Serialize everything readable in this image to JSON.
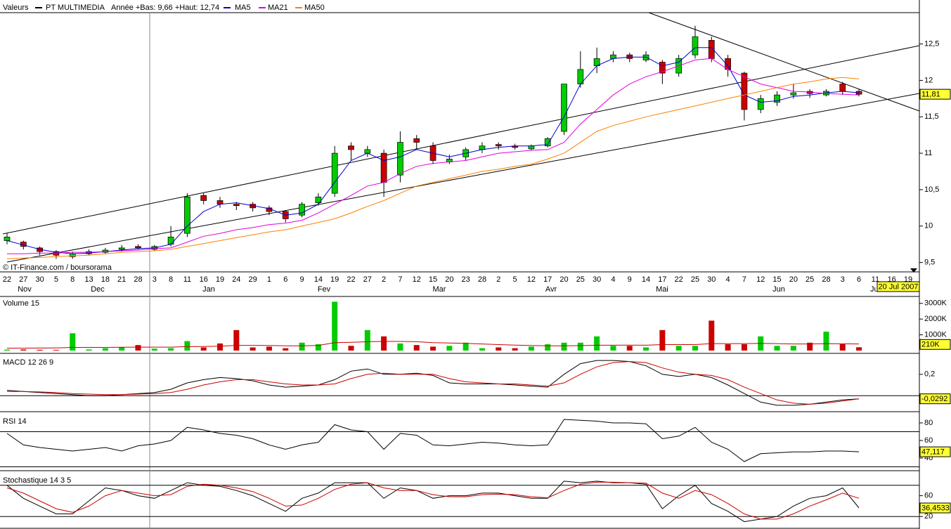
{
  "header": {
    "label": "Valeurs",
    "title": "PT MULTIMEDIA",
    "subtitle": "Année +Bas: 9,66 +Haut: 12,74",
    "credit": "© IT-Finance.com / boursorama",
    "date": "20 Jul 2007"
  },
  "x_labels": [
    "22",
    "27",
    "30",
    "5",
    "8",
    "13",
    "18",
    "21",
    "28",
    "3",
    "8",
    "11",
    "16",
    "19",
    "24",
    "29",
    "1",
    "6",
    "9",
    "14",
    "19",
    "22",
    "27",
    "2",
    "7",
    "12",
    "15",
    "20",
    "23",
    "28",
    "2",
    "5",
    "12",
    "17",
    "20",
    "25",
    "30",
    "4",
    "9",
    "14",
    "17",
    "22",
    "25",
    "30",
    "4",
    "7",
    "12",
    "15",
    "20",
    "25",
    "28",
    "3",
    "6",
    "11",
    "16",
    "19"
  ],
  "months": [
    "Nov",
    "Dec",
    "Jan",
    "Fev",
    "Mar",
    "Avr",
    "Mai",
    "Jun",
    "Jul"
  ],
  "chart_data": [
    {
      "type": "candlestick",
      "up_color": "#00cc00",
      "down_color": "#cc0000",
      "open": [
        9.8,
        9.78,
        9.7,
        9.65,
        9.58,
        9.62,
        9.64,
        9.68,
        9.72,
        9.68,
        9.75,
        9.9,
        10.42,
        10.35,
        10.3,
        10.3,
        10.25,
        10.2,
        10.15,
        10.32,
        10.45,
        11.1,
        11.0,
        11.0,
        10.7,
        11.2,
        11.1,
        10.88,
        10.95,
        11.05,
        11.12,
        11.1,
        11.06,
        11.1,
        11.3,
        11.95,
        12.2,
        12.3,
        12.35,
        12.28,
        12.25,
        12.1,
        12.35,
        12.55,
        12.3,
        12.1,
        11.6,
        11.7,
        11.8,
        11.85,
        11.8,
        11.95,
        11.85
      ],
      "high": [
        9.9,
        9.8,
        9.72,
        9.67,
        9.65,
        9.68,
        9.7,
        9.74,
        9.75,
        9.74,
        10.0,
        10.45,
        10.45,
        10.4,
        10.33,
        10.33,
        10.28,
        10.22,
        10.33,
        10.45,
        11.1,
        11.15,
        11.1,
        11.05,
        11.3,
        11.25,
        11.15,
        10.98,
        11.08,
        11.15,
        11.15,
        11.13,
        11.12,
        11.22,
        11.95,
        12.4,
        12.45,
        12.4,
        12.38,
        12.4,
        12.28,
        12.35,
        12.75,
        12.6,
        12.35,
        12.12,
        11.8,
        11.85,
        11.95,
        11.88,
        11.88,
        11.98,
        11.88
      ],
      "low": [
        9.75,
        9.68,
        9.6,
        9.55,
        9.55,
        9.6,
        9.62,
        9.65,
        9.68,
        9.66,
        9.72,
        9.85,
        10.3,
        10.25,
        10.22,
        10.2,
        10.15,
        10.05,
        10.12,
        10.28,
        10.4,
        10.9,
        10.95,
        10.4,
        10.6,
        11.05,
        10.85,
        10.85,
        10.9,
        11.0,
        11.05,
        11.05,
        11.04,
        11.08,
        11.25,
        11.9,
        12.1,
        12.25,
        12.25,
        12.25,
        11.95,
        12.05,
        12.3,
        12.25,
        12.05,
        11.45,
        11.55,
        11.65,
        11.75,
        11.76,
        11.78,
        11.8,
        11.78
      ],
      "close": [
        9.85,
        9.72,
        9.65,
        9.6,
        9.62,
        9.65,
        9.67,
        9.7,
        9.7,
        9.72,
        9.85,
        10.4,
        10.35,
        10.3,
        10.28,
        10.25,
        10.2,
        10.1,
        10.3,
        10.4,
        11.0,
        11.05,
        11.05,
        10.6,
        11.15,
        11.15,
        10.9,
        10.92,
        11.05,
        11.1,
        11.1,
        11.08,
        11.1,
        11.2,
        11.95,
        12.15,
        12.3,
        12.35,
        12.3,
        12.35,
        12.1,
        12.3,
        12.6,
        12.3,
        12.15,
        11.6,
        11.75,
        11.8,
        11.83,
        11.82,
        11.85,
        11.85,
        11.81
      ],
      "last_label": "11,81",
      "series": [
        {
          "name": "MA5",
          "color": "#0000cc",
          "values": [
            9.8,
            9.74,
            9.68,
            9.64,
            9.62,
            9.63,
            9.65,
            9.67,
            9.69,
            9.7,
            9.75,
            10.0,
            10.2,
            10.3,
            10.32,
            10.28,
            10.24,
            10.15,
            10.18,
            10.3,
            10.6,
            10.9,
            11.0,
            10.9,
            10.95,
            11.05,
            11.0,
            10.95,
            11.0,
            11.05,
            11.08,
            11.1,
            11.1,
            11.12,
            11.5,
            11.95,
            12.2,
            12.3,
            12.32,
            12.32,
            12.2,
            12.25,
            12.45,
            12.45,
            12.2,
            11.8,
            11.7,
            11.72,
            11.78,
            11.8,
            11.83,
            11.85,
            11.83
          ]
        },
        {
          "name": "MA21",
          "color": "#e000e0",
          "values": [
            9.62,
            9.62,
            9.63,
            9.63,
            9.64,
            9.64,
            9.65,
            9.66,
            9.67,
            9.69,
            9.7,
            9.78,
            9.86,
            9.9,
            9.95,
            9.98,
            10.02,
            10.04,
            10.08,
            10.18,
            10.3,
            10.42,
            10.55,
            10.6,
            10.72,
            10.82,
            10.86,
            10.88,
            10.9,
            10.95,
            11.0,
            11.02,
            11.04,
            11.05,
            11.15,
            11.4,
            11.6,
            11.8,
            11.95,
            12.05,
            12.12,
            12.2,
            12.28,
            12.3,
            12.15,
            12.05,
            11.95,
            11.9,
            11.85,
            11.84,
            11.82,
            11.81,
            11.8
          ]
        },
        {
          "name": "MA50",
          "color": "#ff8000",
          "values": [
            9.55,
            9.56,
            9.57,
            9.58,
            9.59,
            9.6,
            9.62,
            9.64,
            9.65,
            9.66,
            9.68,
            9.72,
            9.76,
            9.8,
            9.84,
            9.88,
            9.92,
            9.95,
            10.0,
            10.05,
            10.1,
            10.18,
            10.27,
            10.35,
            10.45,
            10.55,
            10.6,
            10.65,
            10.7,
            10.75,
            10.78,
            10.82,
            10.85,
            10.92,
            11.0,
            11.15,
            11.3,
            11.38,
            11.44,
            11.5,
            11.55,
            11.6,
            11.65,
            11.7,
            11.75,
            11.8,
            11.85,
            11.9,
            11.95,
            11.98,
            12.02,
            12.04,
            12.02
          ]
        }
      ],
      "ylim": [
        9.4,
        12.93
      ],
      "yticks": [
        {
          "value": 9.5,
          "label": "9,5"
        },
        10,
        {
          "value": 10.5,
          "label": "10,5"
        },
        11,
        {
          "value": 11.5,
          "label": "11,5"
        },
        12,
        {
          "value": 12.5,
          "label": "12,5"
        }
      ]
    },
    {
      "type": "bar",
      "title": "Volume 15",
      "values": [
        60,
        70,
        50,
        40,
        1100,
        70,
        150,
        200,
        350,
        120,
        150,
        600,
        200,
        450,
        1300,
        200,
        250,
        150,
        500,
        400,
        3100,
        300,
        1300,
        900,
        450,
        350,
        250,
        300,
        500,
        150,
        200,
        150,
        250,
        400,
        500,
        500,
        900,
        300,
        300,
        200,
        1300,
        300,
        300,
        1900,
        400,
        400,
        900,
        300,
        300,
        500,
        1200,
        400,
        210
      ],
      "last_label": "210K",
      "series": [
        {
          "color": "#cc0000",
          "values": [
            150,
            150,
            160,
            170,
            200,
            200,
            200,
            210,
            220,
            220,
            220,
            250,
            260,
            280,
            330,
            330,
            320,
            300,
            300,
            320,
            500,
            520,
            560,
            580,
            580,
            560,
            500,
            480,
            460,
            420,
            380,
            350,
            320,
            300,
            300,
            310,
            340,
            340,
            350,
            340,
            380,
            380,
            380,
            440,
            440,
            440,
            460,
            440,
            420,
            420,
            440,
            430,
            420
          ]
        }
      ],
      "ylim": [
        0,
        3300
      ],
      "yticks": [
        {
          "value": 1000,
          "label": "1000K"
        },
        {
          "value": 2000,
          "label": "2000K"
        },
        {
          "value": 3000,
          "label": "3000K"
        }
      ]
    },
    {
      "type": "line",
      "title": "MACD 12 26 9",
      "series": [
        {
          "color": "#000000",
          "values": [
            0.05,
            0.04,
            0.03,
            0.02,
            0.01,
            0.0,
            0.0,
            0.01,
            0.02,
            0.03,
            0.06,
            0.12,
            0.15,
            0.17,
            0.16,
            0.14,
            0.1,
            0.08,
            0.09,
            0.1,
            0.15,
            0.23,
            0.25,
            0.2,
            0.2,
            0.21,
            0.19,
            0.12,
            0.11,
            0.11,
            0.11,
            0.1,
            0.09,
            0.08,
            0.2,
            0.3,
            0.33,
            0.33,
            0.32,
            0.28,
            0.2,
            0.18,
            0.2,
            0.17,
            0.1,
            0.02,
            -0.06,
            -0.09,
            -0.09,
            -0.08,
            -0.06,
            -0.04,
            -0.0292
          ]
        },
        {
          "color": "#cc0000",
          "values": [
            0.04,
            0.04,
            0.035,
            0.03,
            0.02,
            0.015,
            0.01,
            0.01,
            0.015,
            0.02,
            0.03,
            0.06,
            0.1,
            0.13,
            0.15,
            0.15,
            0.13,
            0.11,
            0.1,
            0.1,
            0.11,
            0.16,
            0.2,
            0.21,
            0.2,
            0.2,
            0.2,
            0.16,
            0.13,
            0.12,
            0.11,
            0.11,
            0.1,
            0.09,
            0.12,
            0.2,
            0.27,
            0.31,
            0.32,
            0.31,
            0.26,
            0.22,
            0.2,
            0.19,
            0.15,
            0.08,
            0.02,
            -0.04,
            -0.07,
            -0.08,
            -0.07,
            -0.05,
            -0.03
          ]
        }
      ],
      "last_label": "-0,0292",
      "guides": [
        0
      ],
      "ylim": [
        -0.13,
        0.37
      ],
      "yticks": [
        {
          "value": 0.2,
          "label": "0,2"
        }
      ]
    },
    {
      "type": "line",
      "title": "RSI 14",
      "series": [
        {
          "color": "#000000",
          "values": [
            68,
            55,
            52,
            50,
            48,
            50,
            52,
            48,
            54,
            56,
            60,
            75,
            72,
            68,
            66,
            62,
            55,
            50,
            55,
            58,
            78,
            72,
            70,
            50,
            68,
            66,
            55,
            54,
            56,
            58,
            57,
            55,
            54,
            55,
            84,
            83,
            82,
            80,
            80,
            79,
            62,
            65,
            75,
            58,
            50,
            36,
            45,
            46,
            47,
            47,
            48,
            48,
            47.117
          ]
        }
      ],
      "last_label": "47,117",
      "guides": [
        30,
        70
      ],
      "ylim": [
        29.6,
        89.6
      ],
      "yticks": [
        40,
        60,
        80
      ]
    },
    {
      "type": "line",
      "title": "Stochastique 14 3 5",
      "series": [
        {
          "color": "#000000",
          "values": [
            80,
            55,
            40,
            25,
            25,
            50,
            75,
            70,
            60,
            55,
            70,
            85,
            80,
            78,
            70,
            60,
            45,
            30,
            55,
            65,
            85,
            85,
            85,
            55,
            75,
            70,
            55,
            60,
            60,
            65,
            65,
            60,
            55,
            55,
            88,
            85,
            88,
            85,
            85,
            82,
            35,
            60,
            80,
            45,
            30,
            10,
            15,
            20,
            40,
            55,
            60,
            75,
            36.4533
          ]
        },
        {
          "color": "#cc0000",
          "values": [
            75,
            65,
            50,
            35,
            28,
            40,
            60,
            70,
            65,
            60,
            62,
            78,
            82,
            80,
            75,
            68,
            55,
            40,
            42,
            55,
            72,
            82,
            85,
            75,
            70,
            70,
            62,
            58,
            58,
            62,
            63,
            62,
            58,
            56,
            70,
            82,
            86,
            86,
            85,
            84,
            65,
            55,
            70,
            62,
            45,
            25,
            15,
            15,
            25,
            40,
            52,
            65,
            55
          ]
        }
      ],
      "last_label": "36,4533",
      "guides": [
        20,
        80
      ],
      "ylim": [
        0,
        100
      ],
      "yticks": [
        20,
        60
      ]
    }
  ]
}
